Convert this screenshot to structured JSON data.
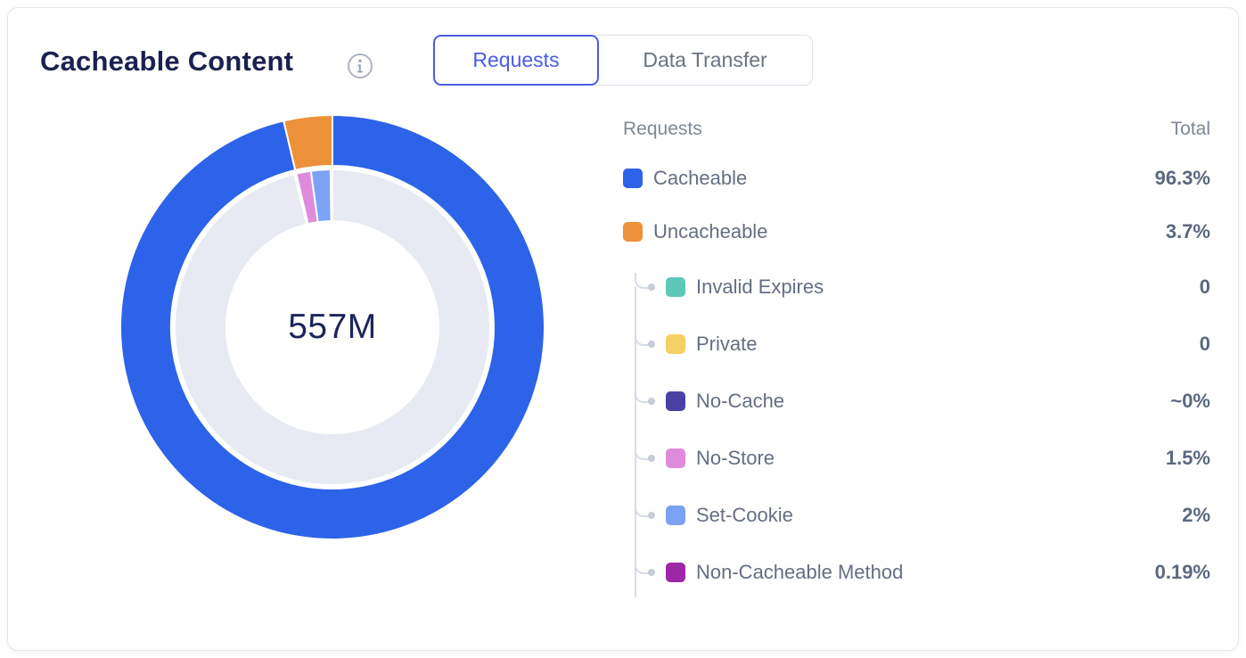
{
  "card": {
    "title": "Cacheable Content",
    "center_value": "557M"
  },
  "tabs": {
    "items": [
      {
        "label": "Requests",
        "selected": true
      },
      {
        "label": "Data Transfer",
        "selected": false
      }
    ]
  },
  "legend": {
    "header_left": "Requests",
    "header_right": "Total",
    "rows": [
      {
        "label": "Cacheable",
        "value": "96.3%",
        "color": "#2D63E8",
        "level": 0
      },
      {
        "label": "Uncacheable",
        "value": "3.7%",
        "color": "#EC9139",
        "level": 0
      },
      {
        "label": "Invalid Expires",
        "value": "0",
        "color": "#5EC8B8",
        "level": 1
      },
      {
        "label": "Private",
        "value": "0",
        "color": "#F6CF65",
        "level": 1
      },
      {
        "label": "No-Cache",
        "value": "~0%",
        "color": "#4B40A4",
        "level": 1
      },
      {
        "label": "No-Store",
        "value": "1.5%",
        "color": "#DE8BDB",
        "level": 1
      },
      {
        "label": "Set-Cookie",
        "value": "2%",
        "color": "#7CA2F5",
        "level": 1
      },
      {
        "label": "Non-Cacheable Method",
        "value": "0.19%",
        "color": "#9E27A8",
        "level": 1
      }
    ]
  },
  "chart_data": {
    "type": "donut",
    "title": "Cacheable Content",
    "metric": "Requests",
    "center_label": "557M",
    "legend_position": "right",
    "rings": [
      {
        "id": "categories",
        "segments": [
          {
            "label": "Cacheable",
            "percent": 96.3,
            "color": "#2D63E8"
          },
          {
            "label": "Uncacheable",
            "percent": 3.7,
            "color": "#EC9139"
          }
        ]
      },
      {
        "id": "uncacheable-breakdown",
        "segments": [
          {
            "label": "Cacheable",
            "percent": 96.3,
            "color": "#E7EAF2"
          },
          {
            "label": "Invalid Expires",
            "percent": 0,
            "render_percent": 0.07,
            "color": "#5EC8B8"
          },
          {
            "label": "Private",
            "percent": 0,
            "render_percent": 0.07,
            "color": "#F6CF65"
          },
          {
            "label": "No-Cache",
            "percent": 0.01,
            "render_percent": 0.07,
            "color": "#4B40A4"
          },
          {
            "label": "No-Store",
            "percent": 1.5,
            "color": "#DE8BDB"
          },
          {
            "label": "Set-Cookie",
            "percent": 2,
            "color": "#7CA2F5"
          },
          {
            "label": "Non-Cacheable Method",
            "percent": 0.19,
            "color": "#9E27A8"
          }
        ]
      }
    ]
  },
  "colors": {
    "accent_blue": "#4A5CE5",
    "title_navy": "#19224F",
    "border_gray": "#E3E6ED",
    "connector_gray": "#D7DCE6"
  }
}
